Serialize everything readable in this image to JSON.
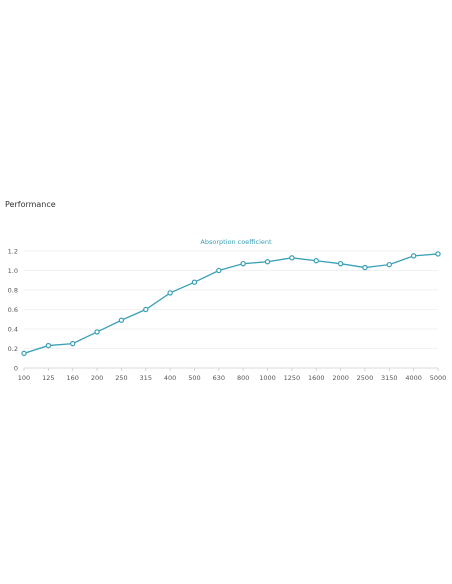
{
  "section": {
    "title": "Performance"
  },
  "colors": {
    "series": "#3aa0b6",
    "grid": "#eeeeee",
    "axis": "#cccccc"
  },
  "chart_data": {
    "type": "line",
    "title": "",
    "xlabel": "",
    "ylabel": "",
    "categories": [
      "100",
      "125",
      "160",
      "200",
      "250",
      "315",
      "400",
      "500",
      "630",
      "800",
      "1000",
      "1250",
      "1600",
      "2000",
      "2500",
      "3150",
      "4000",
      "5000"
    ],
    "series": [
      {
        "name": "Absorption coefficient",
        "values": [
          0.15,
          0.23,
          0.25,
          0.37,
          0.49,
          0.6,
          0.77,
          0.88,
          1.0,
          1.07,
          1.09,
          1.13,
          1.1,
          1.07,
          1.03,
          1.06,
          1.15,
          1.17
        ]
      }
    ],
    "ylim": [
      0,
      1.2
    ],
    "yticks": [
      "0",
      "0.2",
      "0.4",
      "0.6",
      "0.8",
      "1.0",
      "1.2"
    ],
    "grid": true,
    "legend_position": "top-center"
  }
}
